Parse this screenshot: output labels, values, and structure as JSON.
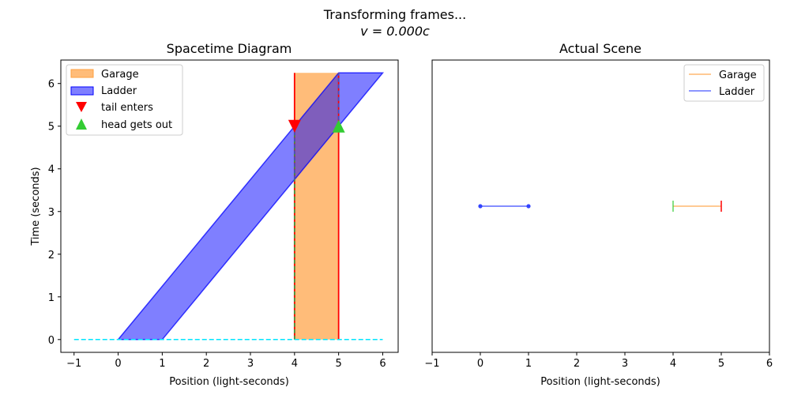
{
  "figure": {
    "suptitle": "Transforming frames...",
    "velocity_label": "v = 0.000c"
  },
  "chart_data": [
    {
      "type": "area",
      "title": "Spacetime Diagram",
      "xlabel": "Position (light-seconds)",
      "ylabel": "Time (seconds)",
      "xlim": [
        -1.3,
        6.35
      ],
      "ylim": [
        -0.3,
        6.55
      ],
      "xticks": [
        -1,
        0,
        1,
        2,
        3,
        4,
        5,
        6
      ],
      "yticks": [
        0,
        1,
        2,
        3,
        4,
        5,
        6
      ],
      "grid": false,
      "legend_placement": "top-left",
      "garage": {
        "x": [
          4,
          5
        ],
        "t": [
          0,
          6.25
        ],
        "color": "#ffa040",
        "wall_color": "#ff0000"
      },
      "ladder": {
        "polygon": [
          [
            0,
            0
          ],
          [
            1,
            0
          ],
          [
            6,
            6.25
          ],
          [
            5,
            6.25
          ]
        ],
        "color": "#0000ff"
      },
      "simultaneity_line": {
        "x": [
          -1,
          6
        ],
        "t": [
          0,
          0
        ],
        "color": "#00e5ff"
      },
      "worldline_markers": [
        {
          "x": 4,
          "t_from": 0,
          "t_to": 5,
          "color": "#22aa44"
        },
        {
          "x": 5,
          "t_from": 5,
          "t_to": 6.25,
          "color": "#3355cc"
        },
        {
          "x": 4,
          "t_from": 3.75,
          "t_to": 5,
          "color": "#3355cc"
        }
      ],
      "events": [
        {
          "name": "tail enters",
          "x": 4,
          "t": 5,
          "marker": "triangle-down",
          "color": "#ff0000"
        },
        {
          "name": "head gets out",
          "x": 5,
          "t": 5,
          "marker": "triangle-up",
          "color": "#33cc33"
        }
      ],
      "legend": [
        {
          "label": "Garage",
          "kind": "patch",
          "color": "#ffa040"
        },
        {
          "label": "Ladder",
          "kind": "patch",
          "color": "#0000ff"
        },
        {
          "label": "tail enters",
          "kind": "triangle-down",
          "color": "#ff0000"
        },
        {
          "label": "head gets out",
          "kind": "triangle-up",
          "color": "#33cc33"
        }
      ]
    },
    {
      "type": "line",
      "title": "Actual Scene",
      "xlabel": "Position (light-seconds)",
      "ylabel": "",
      "xlim": [
        -1,
        6
      ],
      "xticks": [
        -1,
        0,
        1,
        2,
        3,
        4,
        5,
        6
      ],
      "grid": false,
      "legend_placement": "top-right",
      "series": [
        {
          "name": "Garage",
          "x": [
            4,
            5
          ],
          "color": "#ffa040",
          "left_end_color": "#33cc33",
          "right_end_color": "#ff0000"
        },
        {
          "name": "Ladder",
          "x": [
            0,
            1
          ],
          "color": "#3344ff"
        }
      ]
    }
  ]
}
